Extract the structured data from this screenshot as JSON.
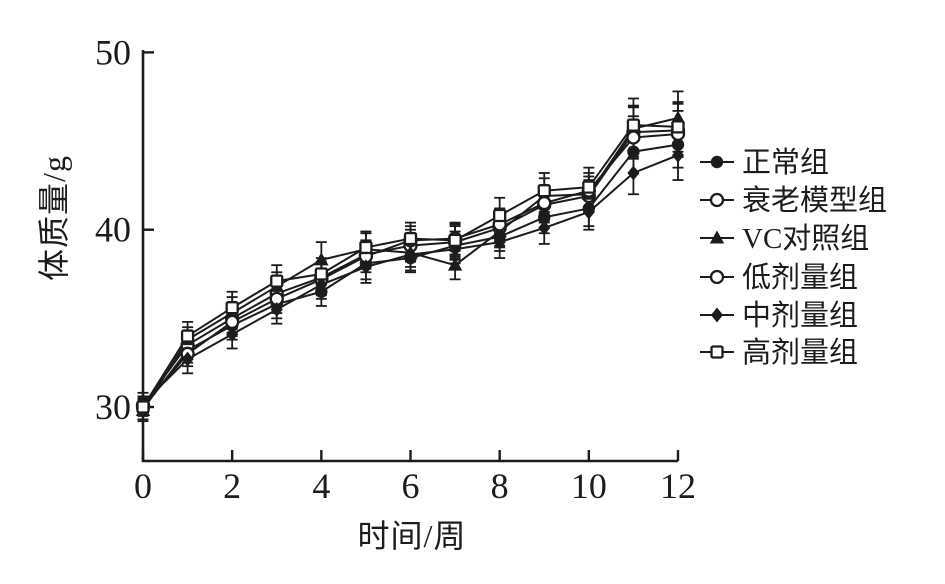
{
  "figure": {
    "background": "#ffffff",
    "ink_color": "#1c1c1c"
  },
  "chart_data": {
    "type": "line",
    "title": "",
    "xlabel": "时间/周",
    "ylabel": "体质量/g",
    "x": [
      0,
      1,
      2,
      3,
      4,
      5,
      6,
      7,
      8,
      9,
      10,
      11,
      12
    ],
    "x_ticks": [
      0,
      2,
      4,
      6,
      8,
      10,
      12
    ],
    "y_ticks": [
      30,
      40,
      50
    ],
    "xlim": [
      0,
      12
    ],
    "ylim": [
      27,
      50.3
    ],
    "grid": false,
    "error_bars": true,
    "legend_position": "right",
    "series": [
      {
        "name": "正常组",
        "marker": "circle-filled",
        "values": [
          29.9,
          33.2,
          34.6,
          35.8,
          36.5,
          38.1,
          38.4,
          39.1,
          39.6,
          40.7,
          41.2,
          44.4,
          44.8
        ],
        "errors": [
          0.6,
          0.7,
          0.8,
          0.8,
          0.8,
          0.9,
          0.8,
          0.8,
          0.8,
          0.9,
          1.0,
          1.2,
          1.3
        ]
      },
      {
        "name": "衰老模型组",
        "marker": "circle-open",
        "values": [
          30.1,
          33.5,
          35.0,
          36.4,
          37.3,
          38.6,
          39.1,
          39.3,
          40.1,
          41.4,
          41.9,
          45.5,
          45.6
        ],
        "errors": [
          0.5,
          0.8,
          0.8,
          0.9,
          0.9,
          0.8,
          0.9,
          0.9,
          1.0,
          1.0,
          0.9,
          1.4,
          1.5
        ]
      },
      {
        "name": "VC对照组",
        "marker": "triangle-filled",
        "values": [
          29.8,
          33.8,
          35.3,
          36.8,
          38.3,
          38.9,
          38.7,
          38.0,
          39.9,
          41.9,
          42.0,
          45.7,
          46.3
        ],
        "errors": [
          0.6,
          0.7,
          0.9,
          0.8,
          1.0,
          0.9,
          0.8,
          0.8,
          0.9,
          1.0,
          1.0,
          1.3,
          1.5
        ]
      },
      {
        "name": "低剂量组",
        "marker": "circle-open",
        "values": [
          30.0,
          33.0,
          34.8,
          36.1,
          37.2,
          38.5,
          39.4,
          39.5,
          40.3,
          41.5,
          42.2,
          45.2,
          45.4
        ],
        "errors": [
          0.5,
          0.7,
          0.8,
          0.8,
          0.9,
          0.9,
          0.8,
          0.9,
          0.9,
          1.0,
          1.0,
          1.2,
          1.3
        ]
      },
      {
        "name": "中剂量组",
        "marker": "diamond-filled",
        "values": [
          30.2,
          32.7,
          34.1,
          35.5,
          36.9,
          37.9,
          38.6,
          38.9,
          39.3,
          40.1,
          41.0,
          43.2,
          44.2
        ],
        "errors": [
          0.6,
          0.8,
          0.8,
          0.8,
          0.8,
          0.9,
          0.9,
          0.8,
          0.9,
          0.9,
          1.0,
          1.2,
          1.4
        ]
      },
      {
        "name": "高剂量组",
        "marker": "square-open",
        "values": [
          30.0,
          34.0,
          35.6,
          37.1,
          37.5,
          39.0,
          39.5,
          39.4,
          40.8,
          42.2,
          42.4,
          45.9,
          45.8
        ],
        "errors": [
          0.5,
          0.8,
          0.9,
          0.9,
          0.9,
          0.9,
          0.9,
          0.9,
          1.0,
          1.0,
          1.1,
          1.5,
          1.4
        ]
      }
    ]
  }
}
